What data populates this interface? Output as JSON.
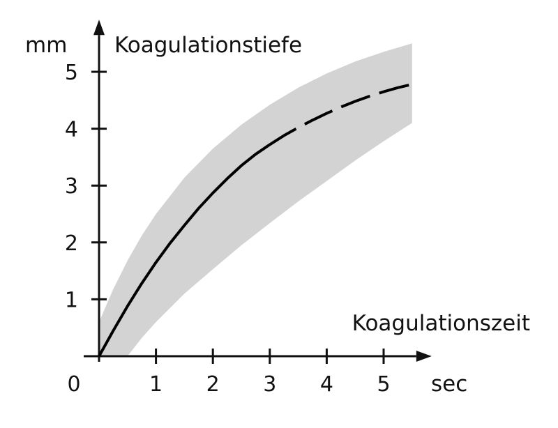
{
  "chart_data": {
    "type": "area",
    "xlabel": "Koagulationszeit",
    "ylabel": "Koagulationstiefe",
    "x_unit": "sec",
    "y_unit": "mm",
    "origin_label": "0",
    "xlim": [
      0,
      5.5
    ],
    "ylim": [
      0,
      5.5
    ],
    "x_ticks": [
      "1",
      "2",
      "3",
      "4",
      "5"
    ],
    "y_ticks": [
      "1",
      "2",
      "3",
      "4",
      "5"
    ],
    "grid": false,
    "series": [
      {
        "style": "solid",
        "x": [
          0,
          0.25,
          0.5,
          0.75,
          1.0,
          1.25,
          1.5,
          1.75,
          2.0,
          2.25,
          2.5,
          2.75,
          3.0
        ],
        "y": [
          0,
          0.45,
          0.88,
          1.28,
          1.65,
          1.99,
          2.3,
          2.6,
          2.87,
          3.12,
          3.35,
          3.55,
          3.72
        ]
      },
      {
        "style": "dashed",
        "x": [
          3.0,
          3.25,
          3.5,
          3.75,
          4.0,
          4.25,
          4.5,
          4.75,
          5.0,
          5.25,
          5.5
        ],
        "y": [
          3.72,
          3.88,
          4.02,
          4.15,
          4.27,
          4.38,
          4.48,
          4.57,
          4.65,
          4.72,
          4.78
        ]
      }
    ],
    "band": {
      "color": "#d3d3d3",
      "x": [
        0,
        0.25,
        0.5,
        0.75,
        1.0,
        1.5,
        2.0,
        2.5,
        3.0,
        3.5,
        4.0,
        4.5,
        5.0,
        5.5
      ],
      "upper": [
        0.6,
        1.18,
        1.68,
        2.12,
        2.5,
        3.14,
        3.65,
        4.07,
        4.42,
        4.72,
        4.97,
        5.18,
        5.35,
        5.5
      ],
      "lower": [
        0,
        0,
        0,
        0.32,
        0.6,
        1.1,
        1.53,
        1.95,
        2.34,
        2.72,
        3.08,
        3.44,
        3.78,
        4.1
      ]
    },
    "colors": {
      "curve": "#000000",
      "axis": "#111111"
    }
  }
}
